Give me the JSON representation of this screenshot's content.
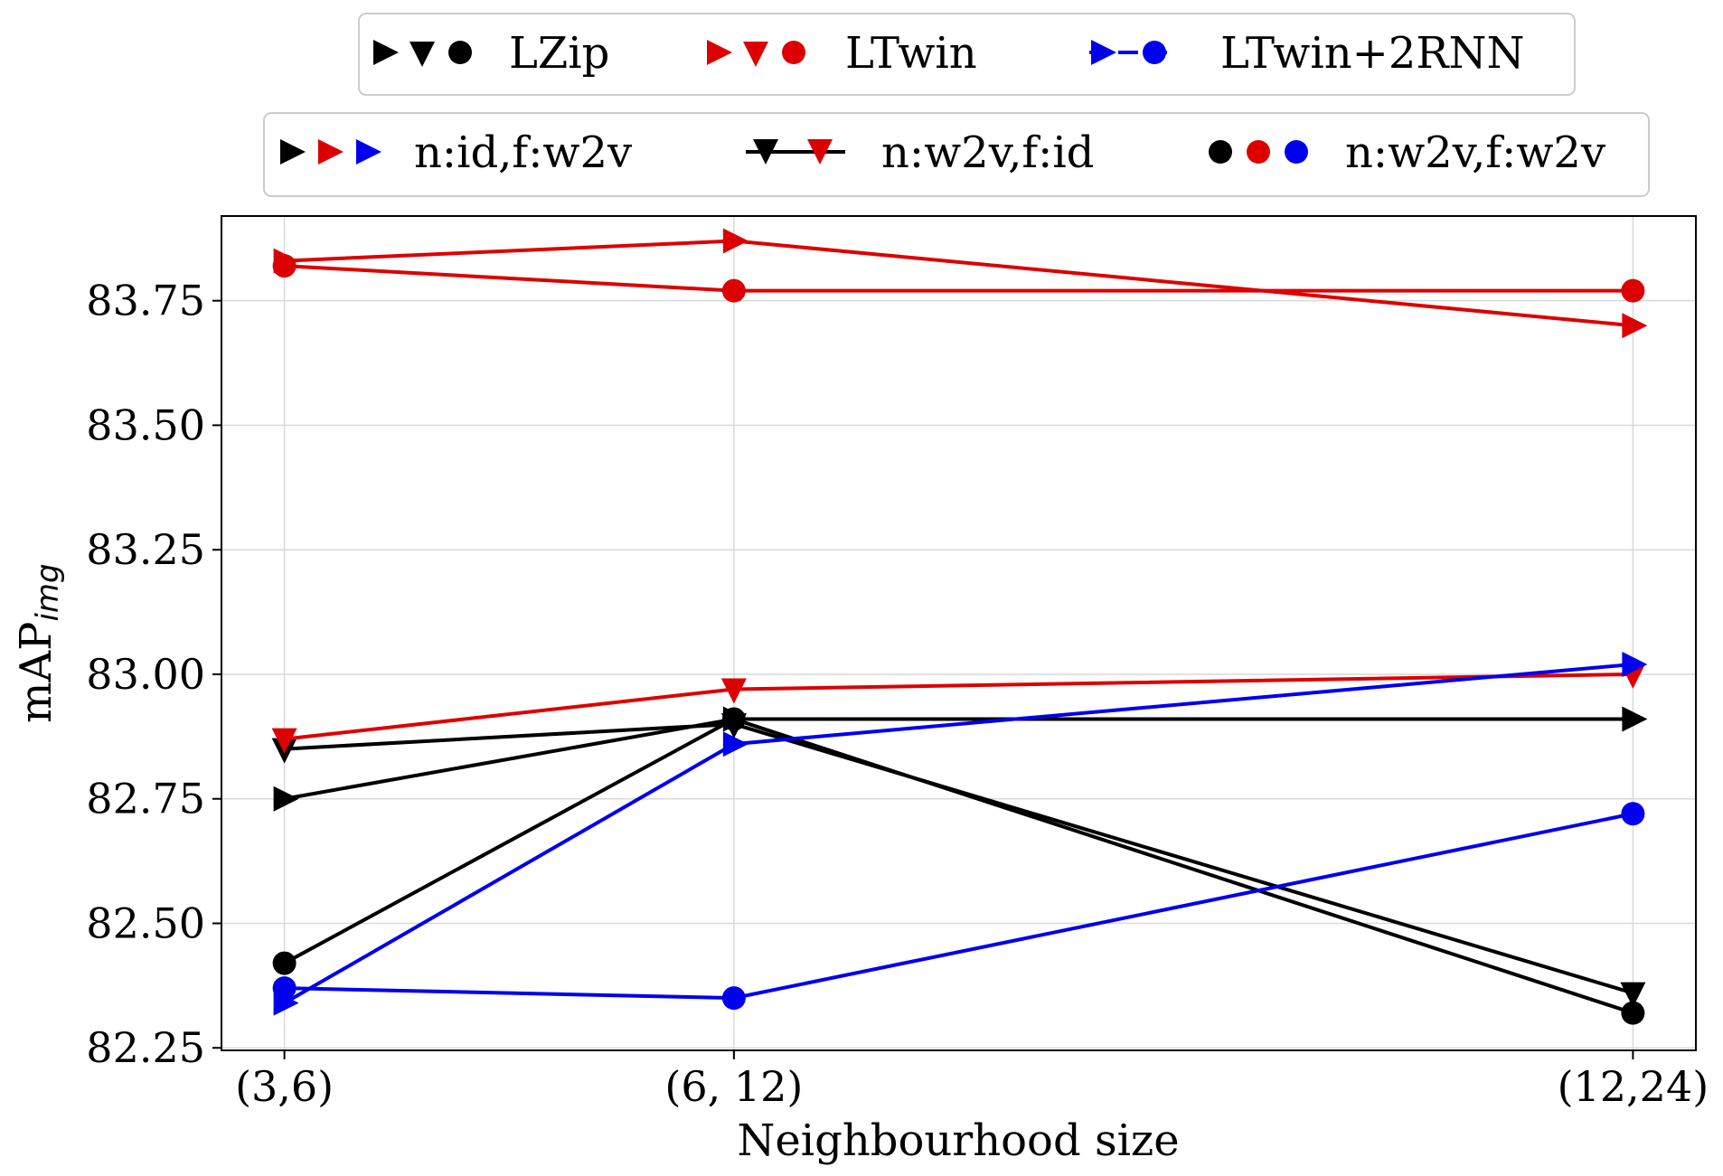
{
  "chart_data": {
    "type": "line",
    "ylabel_main": "mAP",
    "ylabel_sub": "img",
    "xlabel": "Neighbourhood size",
    "categories": [
      "(3,6)",
      "(6, 12)",
      "(12,24)"
    ],
    "x_positions": [
      0,
      1,
      3
    ],
    "x_range": [
      -0.14,
      3.14
    ],
    "ylim": [
      82.245,
      83.92
    ],
    "yticks": [
      82.25,
      82.5,
      82.75,
      83.0,
      83.25,
      83.5,
      83.75
    ],
    "ytick_labels": [
      "82.25",
      "82.50",
      "82.75",
      "83.00",
      "83.25",
      "83.50",
      "83.75"
    ],
    "grid": true,
    "legend_models": [
      {
        "label": "LZip",
        "color": "#000000"
      },
      {
        "label": "LTwin",
        "color": "#dd0000"
      },
      {
        "label": "LTwin+2RNN",
        "color": "#0000ee"
      }
    ],
    "legend_variants": [
      {
        "label": "n:id,f:w2v",
        "marker": "triangle-right"
      },
      {
        "label": "n:w2v,f:id",
        "marker": "triangle-down"
      },
      {
        "label": "n:w2v,f:w2v",
        "marker": "circle"
      }
    ],
    "series": [
      {
        "name": "LZip n:id,f:w2v",
        "color": "#000000",
        "marker": "triangle-right",
        "values": [
          82.75,
          82.91,
          82.91
        ]
      },
      {
        "name": "LZip n:w2v,f:id",
        "color": "#000000",
        "marker": "triangle-down",
        "values": [
          82.85,
          82.9,
          82.36
        ]
      },
      {
        "name": "LZip n:w2v,f:w2v",
        "color": "#000000",
        "marker": "circle",
        "values": [
          82.42,
          82.91,
          82.32
        ]
      },
      {
        "name": "LTwin n:id,f:w2v",
        "color": "#dd0000",
        "marker": "triangle-right",
        "values": [
          83.83,
          83.87,
          83.7
        ]
      },
      {
        "name": "LTwin n:w2v,f:id",
        "color": "#dd0000",
        "marker": "triangle-down",
        "values": [
          82.87,
          82.97,
          83.0
        ]
      },
      {
        "name": "LTwin n:w2v,f:w2v",
        "color": "#dd0000",
        "marker": "circle",
        "values": [
          83.82,
          83.77,
          83.77
        ]
      },
      {
        "name": "LTwin+2RNN n:id,f:w2v",
        "color": "#0000ee",
        "marker": "triangle-right",
        "values": [
          82.34,
          82.86,
          83.02
        ]
      },
      {
        "name": "LTwin+2RNN n:w2v,f:w2v",
        "color": "#0000ee",
        "marker": "circle",
        "values": [
          82.37,
          82.35,
          82.72
        ]
      }
    ]
  }
}
